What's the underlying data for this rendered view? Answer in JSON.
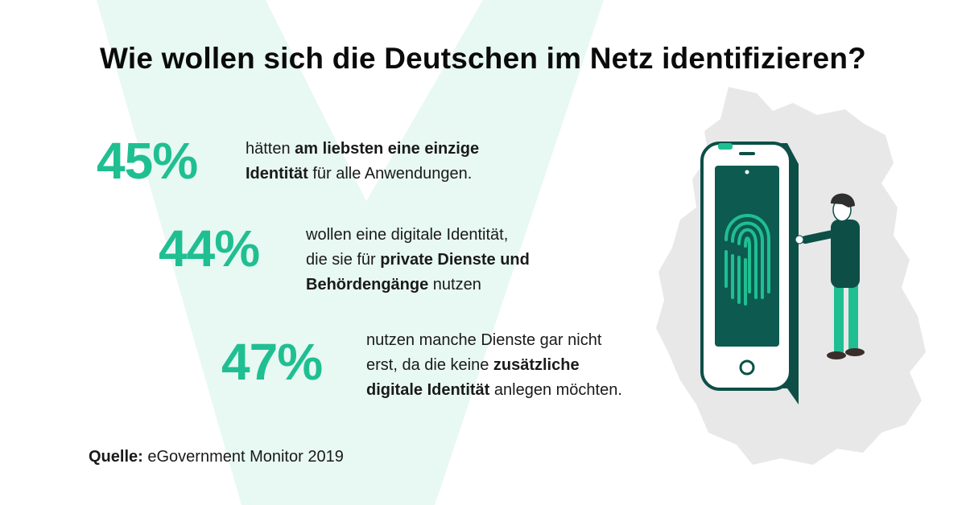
{
  "title": "Wie wollen sich die Deutschen im Netz identifizieren?",
  "stats": [
    {
      "value": "45%",
      "line1": [
        "hätten ",
        "am liebsten eine einzige"
      ],
      "line2": [
        "Identität",
        " für alle Anwendungen."
      ]
    },
    {
      "value": "44%",
      "line1": "wollen eine digitale Identität,",
      "line2": [
        "die sie für ",
        "private Dienste und"
      ],
      "line3": [
        "Behördengänge",
        " nutzen"
      ]
    },
    {
      "value": "47%",
      "line1": "nutzen manche Dienste gar nicht",
      "line2": [
        "erst, da die keine ",
        "zusätzliche"
      ],
      "line3": [
        "digitale Identität",
        " anlegen möchten."
      ]
    }
  ],
  "source": {
    "label": "Quelle:",
    "text": " eGovernment Monitor 2019"
  },
  "icons": {
    "illustration": "phone-fingerprint-person-illustration",
    "map": "germany-map-shape"
  },
  "colors": {
    "accent": "#1fbf92",
    "phone_dark": "#0d4f47",
    "fingerprint": "#1fbf92",
    "map_gray": "#e6e6e6",
    "bg_v": "#e6f7f1"
  }
}
